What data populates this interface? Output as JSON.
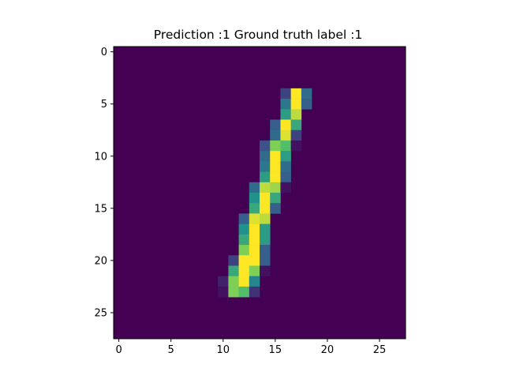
{
  "chart_data": {
    "type": "heatmap",
    "title": "Prediction :1 Ground truth label :1",
    "xlabel": "",
    "ylabel": "",
    "colormap": "viridis",
    "value_range": [
      0,
      1
    ],
    "grid": false,
    "rows": 28,
    "cols": 28,
    "x_ticks": [
      0,
      5,
      10,
      15,
      20,
      25
    ],
    "y_ticks": [
      0,
      5,
      10,
      15,
      20,
      25
    ],
    "xlim": [
      -0.5,
      27.5
    ],
    "ylim": [
      27.5,
      -0.5
    ],
    "background_value": 0,
    "pixels": [
      [
        4,
        16,
        0.2
      ],
      [
        4,
        17,
        1.0
      ],
      [
        4,
        18,
        0.35
      ],
      [
        5,
        16,
        0.4
      ],
      [
        5,
        17,
        1.0
      ],
      [
        5,
        18,
        0.3
      ],
      [
        6,
        16,
        0.55
      ],
      [
        6,
        17,
        0.9
      ],
      [
        7,
        15,
        0.3
      ],
      [
        7,
        16,
        1.0
      ],
      [
        7,
        17,
        0.6
      ],
      [
        8,
        15,
        0.35
      ],
      [
        8,
        16,
        0.95
      ],
      [
        8,
        17,
        0.2
      ],
      [
        9,
        14,
        0.25
      ],
      [
        9,
        15,
        0.8
      ],
      [
        9,
        16,
        0.7
      ],
      [
        9,
        17,
        0.05
      ],
      [
        10,
        14,
        0.35
      ],
      [
        10,
        15,
        1.0
      ],
      [
        10,
        16,
        0.55
      ],
      [
        11,
        14,
        0.4
      ],
      [
        11,
        15,
        1.0
      ],
      [
        11,
        16,
        0.35
      ],
      [
        12,
        14,
        0.55
      ],
      [
        12,
        15,
        1.0
      ],
      [
        12,
        16,
        0.3
      ],
      [
        13,
        13,
        0.35
      ],
      [
        13,
        14,
        0.9
      ],
      [
        13,
        15,
        0.85
      ],
      [
        13,
        16,
        0.05
      ],
      [
        14,
        13,
        0.5
      ],
      [
        14,
        14,
        1.0
      ],
      [
        14,
        15,
        0.6
      ],
      [
        15,
        13,
        0.6
      ],
      [
        15,
        14,
        1.0
      ],
      [
        15,
        15,
        0.3
      ],
      [
        16,
        12,
        0.3
      ],
      [
        16,
        13,
        0.95
      ],
      [
        16,
        14,
        0.9
      ],
      [
        17,
        12,
        0.5
      ],
      [
        17,
        13,
        1.0
      ],
      [
        17,
        14,
        0.55
      ],
      [
        18,
        12,
        0.6
      ],
      [
        18,
        13,
        1.0
      ],
      [
        18,
        14,
        0.55
      ],
      [
        19,
        12,
        0.8
      ],
      [
        19,
        13,
        1.0
      ],
      [
        19,
        14,
        0.3
      ],
      [
        20,
        11,
        0.2
      ],
      [
        20,
        12,
        1.0
      ],
      [
        20,
        13,
        1.0
      ],
      [
        20,
        14,
        0.3
      ],
      [
        21,
        11,
        0.6
      ],
      [
        21,
        12,
        1.0
      ],
      [
        21,
        13,
        0.8
      ],
      [
        21,
        14,
        0.05
      ],
      [
        22,
        10,
        0.1
      ],
      [
        22,
        11,
        0.8
      ],
      [
        22,
        12,
        1.0
      ],
      [
        22,
        13,
        0.45
      ],
      [
        23,
        10,
        0.05
      ],
      [
        23,
        11,
        0.8
      ],
      [
        23,
        12,
        0.7
      ],
      [
        23,
        13,
        0.15
      ]
    ]
  }
}
